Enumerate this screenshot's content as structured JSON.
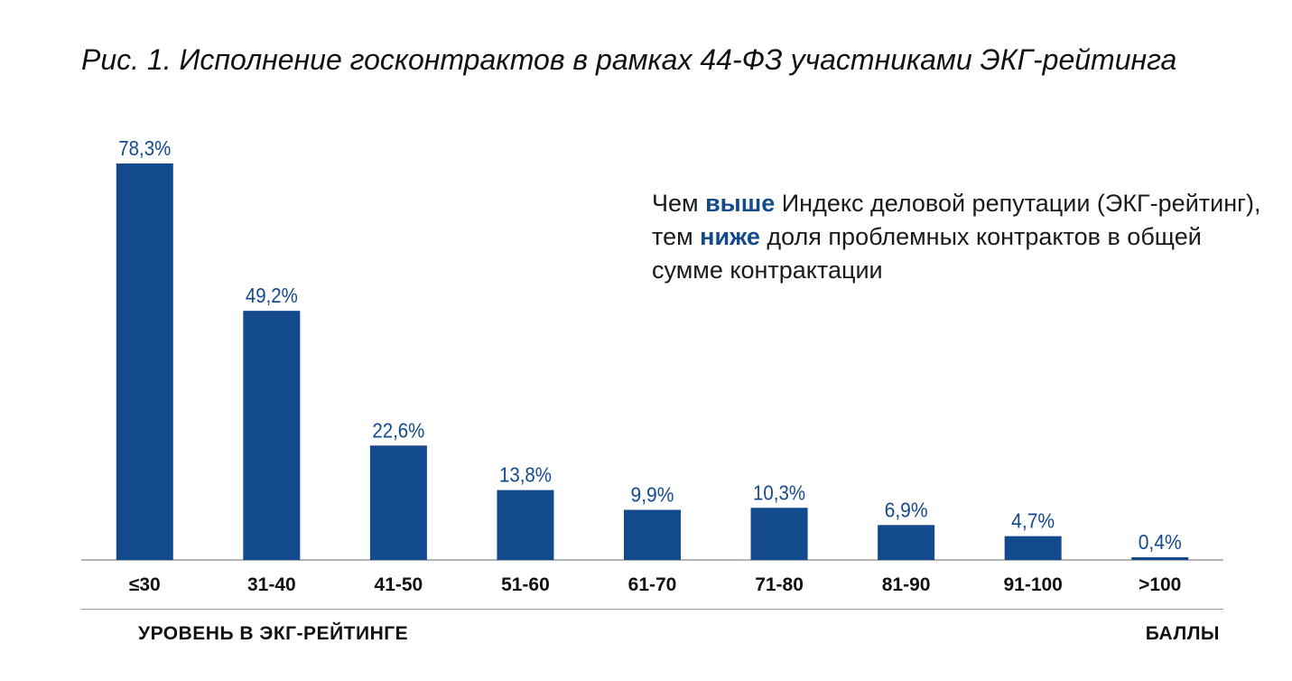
{
  "title": "Рис. 1. Исполнение госконтрактов в рамках 44-ФЗ участниками ЭКГ-рейтинга",
  "note": {
    "p1": "Чем ",
    "h1": "выше",
    "p2": " Индекс деловой репутации (ЭКГ-рейтинг), тем ",
    "h2": "ниже",
    "p3": " доля проблемных контрактов в общей сумме контрактации"
  },
  "colors": {
    "bar": "#134a8d",
    "label": "#134a8d",
    "axis": "#9a9a9a"
  },
  "chart_data": {
    "type": "bar",
    "title": "Рис. 1. Исполнение госконтрактов в рамках 44-ФЗ участниками ЭКГ-рейтинга",
    "categories": [
      "≤30",
      "31-40",
      "41-50",
      "51-60",
      "61-70",
      "71-80",
      "81-90",
      "91-100",
      ">100"
    ],
    "values": [
      78.3,
      49.2,
      22.6,
      13.8,
      9.9,
      10.3,
      6.9,
      4.7,
      0.4
    ],
    "value_labels": [
      "78,3%",
      "49,2%",
      "22,6%",
      "13,8%",
      "9,9%",
      "10,3%",
      "6,9%",
      "4,7%",
      "0,4%"
    ],
    "xlabel": "УРОВЕНЬ В ЭКГ-РЕЙТИНГЕ",
    "unit_label": "БАЛЛЫ",
    "ylabel": "",
    "ylim": [
      0,
      78.3
    ],
    "grid": false
  }
}
